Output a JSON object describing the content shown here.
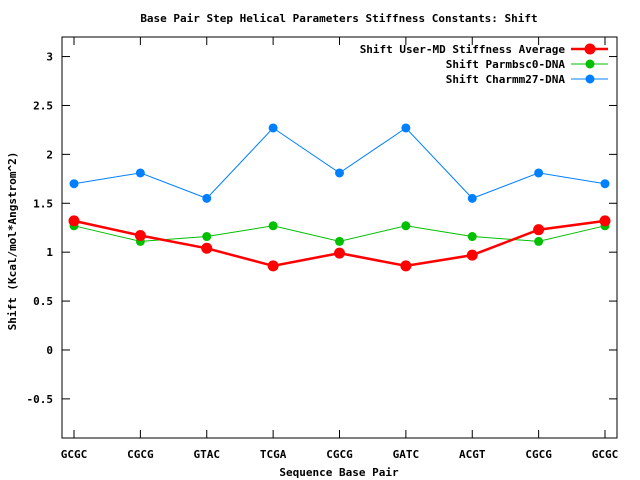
{
  "chart_data": {
    "type": "line",
    "title": "Base Pair Step Helical Parameters Stiffness Constants: Shift",
    "xlabel": "Sequence Base Pair",
    "ylabel": "Shift (Kcal/mol*Angstrom^2)",
    "categories": [
      "GCGC",
      "CGCG",
      "GTAC",
      "TCGA",
      "CGCG",
      "GATC",
      "ACGT",
      "CGCG",
      "GCGC"
    ],
    "ylim": [
      -0.9,
      3.2
    ],
    "yticks": [
      "-0.5",
      "0",
      "0.5",
      "1",
      "1.5",
      "2",
      "2.5",
      "3"
    ],
    "grid": false,
    "legend_position": "top-right",
    "series": [
      {
        "name": "Shift User-MD Stiffness Average",
        "color": "#ff0000",
        "values": [
          1.32,
          1.17,
          1.04,
          0.86,
          0.99,
          0.86,
          0.97,
          1.23,
          1.32
        ]
      },
      {
        "name": "Shift Parmbsc0-DNA",
        "color": "#00c000",
        "values": [
          1.27,
          1.11,
          1.16,
          1.27,
          1.11,
          1.27,
          1.16,
          1.11,
          1.27
        ]
      },
      {
        "name": "Shift Charmm27-DNA",
        "color": "#0080ff",
        "values": [
          1.7,
          1.81,
          1.55,
          2.27,
          1.81,
          2.27,
          1.55,
          1.81,
          1.7
        ]
      }
    ]
  }
}
